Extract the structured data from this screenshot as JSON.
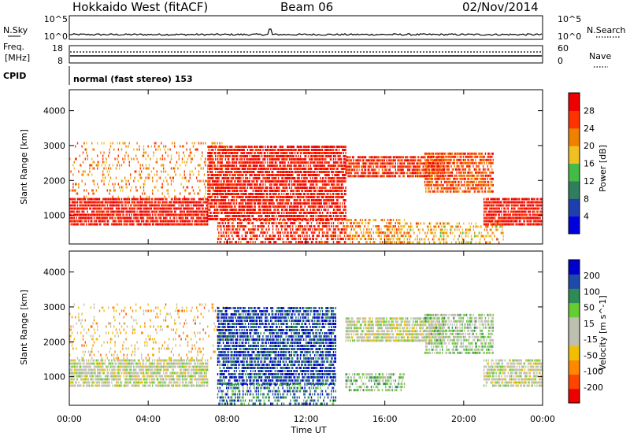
{
  "header": {
    "station": "Hokkaido West (fitACF)",
    "beam": "Beam 06",
    "date": "02/Nov/2014"
  },
  "top_panels": {
    "nsky_label": "N.Sky",
    "nsky_ticks": [
      "10^5",
      "10^0"
    ],
    "nsearch_label": "N.Search",
    "nsearch_ticks": [
      "10^5",
      "10^0"
    ],
    "freq_label_1": "Freq.",
    "freq_label_2": "[MHz]",
    "freq_ticks": [
      "18",
      "8"
    ],
    "nave_label": "Nave",
    "nave_ticks": [
      "60",
      "0"
    ],
    "cpid_label": "CPID",
    "cpid_text": "normal (fast stereo) 153"
  },
  "colors": {
    "power_scale": [
      "#0000dd",
      "#1e3fae",
      "#2f7f5f",
      "#44bb44",
      "#f0c020",
      "#f08000",
      "#ff3300",
      "#ee0000"
    ],
    "velocity_scale": [
      "#ee0000",
      "#ff4400",
      "#ff8800",
      "#f0c000",
      "#bfbfb0",
      "#bfbfb0",
      "#66cc33",
      "#2e8b57",
      "#1e4aa8",
      "#0000cc"
    ],
    "ground_scatter": "#c0c0b0"
  },
  "chart_data": [
    {
      "type": "heatmap",
      "panel": "power",
      "xlabel": "Time UT",
      "ylabel": "Slant Range [km]",
      "x_tick_labels": [
        "00:00",
        "04:00",
        "08:00",
        "12:00",
        "16:00",
        "20:00",
        "00:00"
      ],
      "x_ticks_hours": [
        0,
        4,
        8,
        12,
        16,
        20,
        24
      ],
      "y_ticks": [
        1000,
        2000,
        3000,
        4000
      ],
      "ylim": [
        180,
        4600
      ],
      "xlim_hours": [
        0,
        24
      ],
      "colorbar_label": "Power [dB]",
      "colorbar_ticks": [
        "28",
        "24",
        "20",
        "16",
        "12",
        "8",
        "4"
      ],
      "colorbar_range": [
        0,
        32
      ],
      "scatter_regions": [
        {
          "t0": 0,
          "t1": 7,
          "r0": 700,
          "r1": 1500,
          "value": 29,
          "density": 0.85
        },
        {
          "t0": 0,
          "t1": 8,
          "r0": 1500,
          "r1": 3100,
          "value": 22,
          "density": 0.18
        },
        {
          "t0": 7,
          "t1": 14,
          "r0": 900,
          "r1": 3000,
          "value": 29,
          "density": 0.8
        },
        {
          "t0": 7.5,
          "t1": 14,
          "r0": 250,
          "r1": 900,
          "value": 28,
          "density": 0.55
        },
        {
          "t0": 14,
          "t1": 19,
          "r0": 2100,
          "r1": 2700,
          "value": 27,
          "density": 0.8
        },
        {
          "t0": 14,
          "t1": 17,
          "r0": 250,
          "r1": 900,
          "value": 22,
          "density": 0.45
        },
        {
          "t0": 18,
          "t1": 21.5,
          "r0": 1700,
          "r1": 2800,
          "value": 25,
          "density": 0.75
        },
        {
          "t0": 21,
          "t1": 24,
          "r0": 700,
          "r1": 1500,
          "value": 29,
          "density": 0.85
        },
        {
          "t0": 16,
          "t1": 22,
          "r0": 250,
          "r1": 800,
          "value": 20,
          "density": 0.35
        }
      ]
    },
    {
      "type": "heatmap",
      "panel": "velocity",
      "xlabel": "Time UT",
      "ylabel": "Slant Range [km]",
      "x_tick_labels": [
        "00:00",
        "04:00",
        "08:00",
        "12:00",
        "16:00",
        "20:00",
        "00:00"
      ],
      "x_ticks_hours": [
        0,
        4,
        8,
        12,
        16,
        20,
        24
      ],
      "y_ticks": [
        1000,
        2000,
        3000,
        4000
      ],
      "ylim": [
        180,
        4600
      ],
      "xlim_hours": [
        0,
        24
      ],
      "colorbar_label": "Velocity [m s^-1]",
      "colorbar_ticks": [
        "200",
        "100",
        "50",
        "15",
        "-15",
        "-50",
        "-100",
        "-200"
      ],
      "colorbar_range": [
        -250,
        250
      ],
      "scatter_regions": [
        {
          "t0": 0,
          "t1": 7,
          "r0": 700,
          "r1": 1500,
          "value": 0,
          "density": 0.8
        },
        {
          "t0": 0,
          "t1": 8,
          "r0": 1500,
          "r1": 3100,
          "value": -80,
          "density": 0.15
        },
        {
          "t0": 7.5,
          "t1": 13.5,
          "r0": 800,
          "r1": 3000,
          "value": 180,
          "density": 0.75
        },
        {
          "t0": 7.5,
          "t1": 13.5,
          "r0": 250,
          "r1": 800,
          "value": 150,
          "density": 0.45
        },
        {
          "t0": 14,
          "t1": 19,
          "r0": 2000,
          "r1": 2700,
          "value": 0,
          "density": 0.8
        },
        {
          "t0": 14,
          "t1": 17,
          "r0": 600,
          "r1": 1100,
          "value": 60,
          "density": 0.6
        },
        {
          "t0": 18,
          "t1": 21.5,
          "r0": 1700,
          "r1": 2800,
          "value": 40,
          "density": 0.65
        },
        {
          "t0": 21,
          "t1": 24,
          "r0": 700,
          "r1": 1500,
          "value": 0,
          "density": 0.75
        }
      ]
    }
  ]
}
